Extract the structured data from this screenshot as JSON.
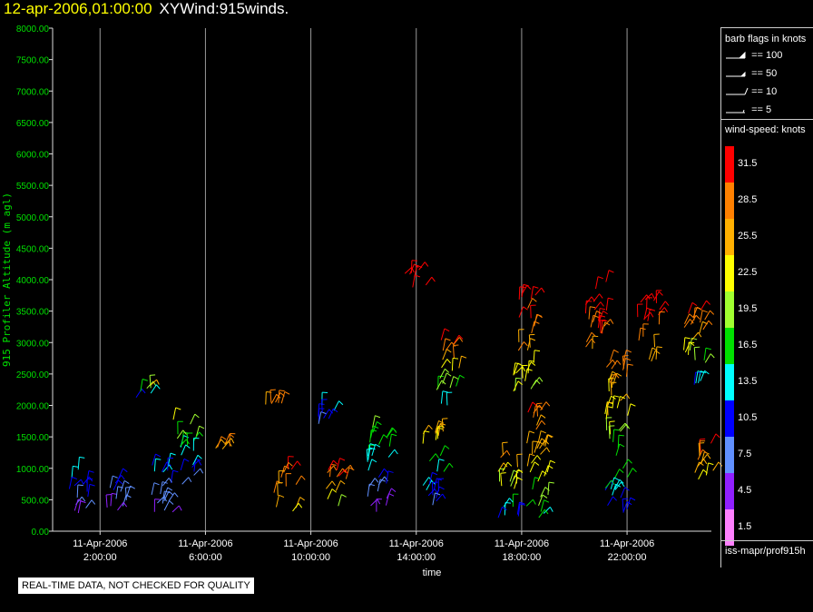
{
  "title": {
    "date": "12-apr-2006,01:00:00",
    "name": "XYWind:915winds."
  },
  "footer": {
    "source": "iss-mapr/prof915h",
    "qc_note": "REAL-TIME DATA, NOT CHECKED FOR QUALITY"
  },
  "legend": {
    "barb_header": "barb flags in knots",
    "barbs": [
      {
        "label": "== 100"
      },
      {
        "label": "== 50"
      },
      {
        "label": "== 10"
      },
      {
        "label": "== 5"
      }
    ],
    "speed_header": "wind-speed: knots",
    "colors": [
      {
        "value": "31.5",
        "color": "#ff0000"
      },
      {
        "value": "28.5",
        "color": "#ff8000"
      },
      {
        "value": "25.5",
        "color": "#ffb000"
      },
      {
        "value": "22.5",
        "color": "#ffff00"
      },
      {
        "value": "19.5",
        "color": "#a0ff30"
      },
      {
        "value": "16.5",
        "color": "#00e000"
      },
      {
        "value": "13.5",
        "color": "#00ffff"
      },
      {
        "value": "10.5",
        "color": "#0000ff"
      },
      {
        "value": "7.5",
        "color": "#6090ff"
      },
      {
        "value": "4.5",
        "color": "#9020ff"
      },
      {
        "value": "1.5",
        "color": "#ff80ff"
      }
    ]
  },
  "chart_data": {
    "type": "scatter",
    "title": "XYWind:915winds.",
    "xlabel": "time",
    "ylabel": "915 Profiler Altitude (m agl)",
    "ylim": [
      0,
      8000
    ],
    "yticks": [
      "0.00",
      "500.00",
      "1000.00",
      "1500.00",
      "2000.00",
      "2500.00",
      "3000.00",
      "3500.00",
      "4000.00",
      "4500.00",
      "5000.00",
      "5500.00",
      "6000.00",
      "6500.00",
      "7000.00",
      "7500.00",
      "8000.00"
    ],
    "xlim_hours": [
      0.2,
      25.2
    ],
    "xticks": [
      {
        "hour": 2,
        "date": "11-Apr-2006",
        "time": "2:00:00"
      },
      {
        "hour": 6,
        "date": "11-Apr-2006",
        "time": "6:00:00"
      },
      {
        "hour": 10,
        "date": "11-Apr-2006",
        "time": "10:00:00"
      },
      {
        "hour": 14,
        "date": "11-Apr-2006",
        "time": "14:00:00"
      },
      {
        "hour": 18,
        "date": "11-Apr-2006",
        "time": "18:00:00"
      },
      {
        "hour": 22,
        "date": "11-Apr-2006",
        "time": "22:00:00"
      }
    ],
    "grid": "vertical at x ticks",
    "clusters": [
      {
        "hour": 1.2,
        "alt_range": [
          200,
          1000
        ],
        "speed": [
          3,
          14
        ]
      },
      {
        "hour": 2.6,
        "alt_range": [
          200,
          900
        ],
        "speed": [
          3,
          12
        ]
      },
      {
        "hour": 3.6,
        "alt_range": [
          2100,
          2400
        ],
        "speed": [
          8,
          30
        ]
      },
      {
        "hour": 4.4,
        "alt_range": [
          200,
          1300
        ],
        "speed": [
          5,
          15
        ]
      },
      {
        "hour": 5.2,
        "alt_range": [
          700,
          1800
        ],
        "speed": [
          6,
          22
        ]
      },
      {
        "hour": 6.8,
        "alt_range": [
          1300,
          1400
        ],
        "speed": [
          26,
          29
        ]
      },
      {
        "hour": 8.5,
        "alt_range": [
          2000,
          2050
        ],
        "speed": [
          27,
          29
        ]
      },
      {
        "hour": 9.0,
        "alt_range": [
          300,
          1000
        ],
        "speed": [
          22,
          31
        ]
      },
      {
        "hour": 10.5,
        "alt_range": [
          1700,
          2150
        ],
        "speed": [
          8,
          20
        ]
      },
      {
        "hour": 11.0,
        "alt_range": [
          300,
          1000
        ],
        "speed": [
          20,
          31
        ]
      },
      {
        "hour": 12.6,
        "alt_range": [
          300,
          1800
        ],
        "speed": [
          5,
          20
        ]
      },
      {
        "hour": 14.0,
        "alt_range": [
          3800,
          4200
        ],
        "speed": [
          30,
          33
        ]
      },
      {
        "hour": 14.6,
        "alt_range": [
          300,
          1600
        ],
        "speed": [
          6,
          25
        ]
      },
      {
        "hour": 15.2,
        "alt_range": [
          2000,
          3100
        ],
        "speed": [
          13,
          32
        ]
      },
      {
        "hour": 17.5,
        "alt_range": [
          200,
          1300
        ],
        "speed": [
          12,
          30
        ]
      },
      {
        "hour": 18.1,
        "alt_range": [
          2200,
          3800
        ],
        "speed": [
          20,
          33
        ]
      },
      {
        "hour": 18.6,
        "alt_range": [
          200,
          2000
        ],
        "speed": [
          15,
          31
        ]
      },
      {
        "hour": 20.8,
        "alt_range": [
          2800,
          4000
        ],
        "speed": [
          28,
          33
        ]
      },
      {
        "hour": 21.6,
        "alt_range": [
          200,
          2800
        ],
        "speed": [
          10,
          30
        ]
      },
      {
        "hour": 22.8,
        "alt_range": [
          2600,
          3700
        ],
        "speed": [
          26,
          33
        ]
      },
      {
        "hour": 24.6,
        "alt_range": [
          2200,
          3600
        ],
        "speed": [
          10,
          33
        ]
      },
      {
        "hour": 24.9,
        "alt_range": [
          700,
          1400
        ],
        "speed": [
          20,
          31
        ]
      }
    ]
  }
}
